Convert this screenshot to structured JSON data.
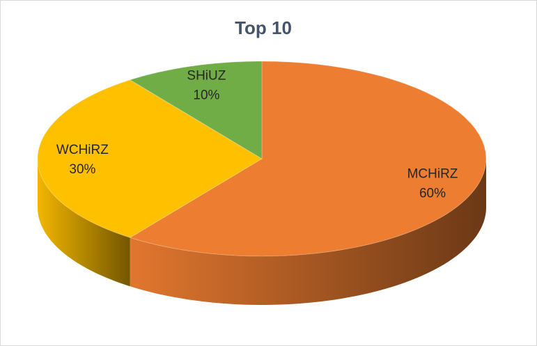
{
  "chart_data": {
    "type": "pie3d",
    "title": "Top 10",
    "categories": [
      "MCHiRZ",
      "WCHiRZ",
      "SHiUZ"
    ],
    "values": [
      60,
      30,
      10
    ],
    "value_labels": [
      "60%",
      "30%",
      "10%"
    ],
    "colors": [
      "#ed7d31",
      "#ffc000",
      "#70ad47"
    ]
  }
}
